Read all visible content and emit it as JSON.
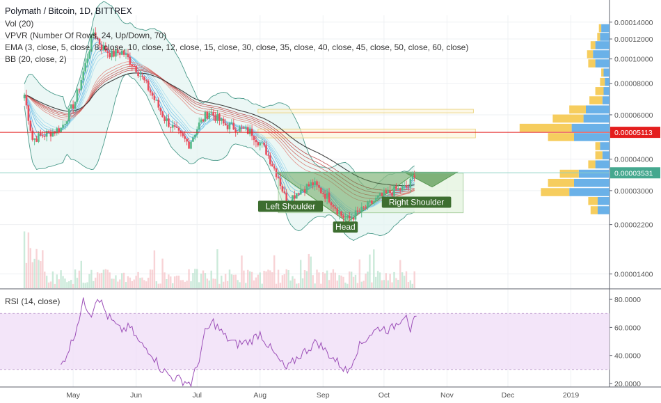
{
  "header": {
    "title": "Polymath / Bitcoin, 1D, BITTREX",
    "indicators": [
      "Vol (20)",
      "VPVR (Number Of Rows, 24, Up/Down, 70)",
      "EMA (3, close, 5, close, 8, close, 10, close, 12, close, 15, close, 30, close, 35, close, 40, close, 45, close, 50, close, 60, close)",
      "BB (20, close, 2)"
    ],
    "rsi_title": "RSI (14, close)"
  },
  "colors": {
    "up": "#53b987",
    "down": "#eb4d5c",
    "bb_fill": "#e3f4f1",
    "rsi_band": "#f0def8",
    "rsi_line": "#9c4fb8",
    "hline": "#e41e1e",
    "price_line": "#8bd1c4",
    "vp_up": "#5aa9e6",
    "vp_down": "#f5c84c",
    "pattern": "#5b9a53",
    "label_bg": "#3d6e30"
  },
  "chart_data": [
    {
      "type": "candlestick",
      "title": "Polymath / Bitcoin, 1D, BITTREX",
      "y_ticks": [
        "0.00014000",
        "0.00012000",
        "0.00010000",
        "0.00008000",
        "0.00006000",
        "0.00004000",
        "0.00003000",
        "0.00002200",
        "0.00001400"
      ],
      "y_ticks_values": [
        0.00014,
        0.00012,
        0.0001,
        8e-05,
        6e-05,
        4e-05,
        3e-05,
        2.2e-05,
        1.4e-05
      ],
      "y_scale": "log",
      "x_ticks": [
        "May",
        "Jun",
        "Jul",
        "Aug",
        "Sep",
        "Oct",
        "Nov",
        "Dec",
        "2019"
      ],
      "x_ticks_dates": [
        "2018-05-01",
        "2018-06-01",
        "2018-07-01",
        "2018-08-01",
        "2018-09-01",
        "2018-10-01",
        "2018-11-01",
        "2018-12-01",
        "2019-01-01"
      ],
      "x_range": [
        "2018-03-26",
        "2019-01-20"
      ],
      "y_range": [
        1.23e-05,
        0.000149
      ],
      "price_keypoints": [
        {
          "date": "2018-04-07",
          "close": 7.2e-05
        },
        {
          "date": "2018-04-11",
          "close": 4.8e-05
        },
        {
          "date": "2018-04-25",
          "close": 5.3e-05
        },
        {
          "date": "2018-05-02",
          "close": 6.8e-05
        },
        {
          "date": "2018-05-07",
          "close": 9.5e-05
        },
        {
          "date": "2018-05-11",
          "close": 0.000128
        },
        {
          "date": "2018-05-15",
          "close": 0.000112
        },
        {
          "date": "2018-05-20",
          "close": 0.000104
        },
        {
          "date": "2018-05-25",
          "close": 0.000107
        },
        {
          "date": "2018-06-01",
          "close": 9.2e-05
        },
        {
          "date": "2018-06-08",
          "close": 7.4e-05
        },
        {
          "date": "2018-06-15",
          "close": 5.8e-05
        },
        {
          "date": "2018-06-22",
          "close": 5e-05
        },
        {
          "date": "2018-06-27",
          "close": 4.6e-05
        },
        {
          "date": "2018-07-02",
          "close": 5.5e-05
        },
        {
          "date": "2018-07-07",
          "close": 6.2e-05
        },
        {
          "date": "2018-07-14",
          "close": 5.5e-05
        },
        {
          "date": "2018-07-21",
          "close": 5.3e-05
        },
        {
          "date": "2018-07-28",
          "close": 5.1e-05
        },
        {
          "date": "2018-08-04",
          "close": 4.3e-05
        },
        {
          "date": "2018-08-10",
          "close": 3.4e-05
        },
        {
          "date": "2018-08-14",
          "close": 2.7e-05
        },
        {
          "date": "2018-08-20",
          "close": 3e-05
        },
        {
          "date": "2018-08-27",
          "close": 3.2e-05
        },
        {
          "date": "2018-09-04",
          "close": 2.8e-05
        },
        {
          "date": "2018-09-10",
          "close": 2.4e-05
        },
        {
          "date": "2018-09-13",
          "close": 2.3e-05
        },
        {
          "date": "2018-09-20",
          "close": 2.5e-05
        },
        {
          "date": "2018-09-28",
          "close": 2.8e-05
        },
        {
          "date": "2018-10-06",
          "close": 3e-05
        },
        {
          "date": "2018-10-13",
          "close": 3.1e-05
        },
        {
          "date": "2018-10-16",
          "close": 3.53e-05
        }
      ],
      "horizontal_line": 5.113e-05,
      "last_price_line": 3.531e-05,
      "price_tags": [
        "0.00005113",
        "0.00003531"
      ],
      "annotations": [
        {
          "text": "Left Shoulder",
          "date": "2018-08-16",
          "price": 2.6e-05
        },
        {
          "text": "Head",
          "date": "2018-09-12",
          "price": 2.15e-05
        },
        {
          "text": "Right Shoulder",
          "date": "2018-10-17",
          "price": 2.7e-05
        }
      ],
      "boxes": [
        {
          "date_start": "2018-07-31",
          "date_end": "2018-11-14",
          "price_low": 6.11e-05,
          "price_high": 6.31e-05
        },
        {
          "date_start": "2018-07-31",
          "date_end": "2018-11-15",
          "price_low": 4.86e-05,
          "price_high": 5.27e-05
        },
        {
          "date_start": "2018-08-10",
          "date_end": "2018-11-09",
          "price_low": 2.45e-05,
          "price_high": 3.52e-05
        }
      ],
      "volume_profile": [
        {
          "price": 0.000132,
          "up": 0.35,
          "down": 0.1
        },
        {
          "price": 0.000122,
          "up": 0.4,
          "down": 0.12
        },
        {
          "price": 0.000113,
          "up": 0.6,
          "down": 0.2
        },
        {
          "price": 0.000104,
          "up": 0.7,
          "down": 0.25
        },
        {
          "price": 9.57e-05,
          "up": 0.6,
          "down": 0.3
        },
        {
          "price": 8.8e-05,
          "up": 0.25,
          "down": 0.1
        },
        {
          "price": 8.08e-05,
          "up": 0.2,
          "down": 0.2
        },
        {
          "price": 7.43e-05,
          "up": 0.25,
          "down": 0.35
        },
        {
          "price": 6.83e-05,
          "up": 0.3,
          "down": 0.55
        },
        {
          "price": 6.28e-05,
          "up": 1.0,
          "down": 0.7
        },
        {
          "price": 5.78e-05,
          "up": 1.1,
          "down": 1.3
        },
        {
          "price": 5.31e-05,
          "up": 1.6,
          "down": 2.2
        },
        {
          "price": 4.88e-05,
          "up": 1.5,
          "down": 1.1
        },
        {
          "price": 4.49e-05,
          "up": 0.4,
          "down": 0.2
        },
        {
          "price": 4.13e-05,
          "up": 0.3,
          "down": 0.3
        },
        {
          "price": 3.8e-05,
          "up": 0.6,
          "down": 0.3
        },
        {
          "price": 3.49e-05,
          "up": 1.3,
          "down": 0.8
        },
        {
          "price": 3.21e-05,
          "up": 1.5,
          "down": 1.1
        },
        {
          "price": 2.95e-05,
          "up": 1.7,
          "down": 1.2
        },
        {
          "price": 2.72e-05,
          "up": 0.5,
          "down": 0.4
        },
        {
          "price": 2.5e-05,
          "up": 0.5,
          "down": 0.3
        }
      ]
    },
    {
      "type": "line",
      "title": "RSI (14, close)",
      "y_ticks": [
        "80.0000",
        "60.0000",
        "40.0000",
        "20.0000"
      ],
      "y_ticks_values": [
        80,
        60,
        40,
        20
      ],
      "y_range": [
        17.5,
        87
      ],
      "band": [
        30,
        70
      ],
      "x": [
        "2018-04-25",
        "2018-05-01",
        "2018-05-06",
        "2018-05-10",
        "2018-05-13",
        "2018-05-18",
        "2018-05-24",
        "2018-05-29",
        "2018-06-03",
        "2018-06-08",
        "2018-06-13",
        "2018-06-18",
        "2018-06-24",
        "2018-06-28",
        "2018-07-01",
        "2018-07-05",
        "2018-07-09",
        "2018-07-15",
        "2018-07-20",
        "2018-07-27",
        "2018-08-01",
        "2018-08-06",
        "2018-08-10",
        "2018-08-14",
        "2018-08-19",
        "2018-08-24",
        "2018-08-29",
        "2018-09-03",
        "2018-09-09",
        "2018-09-13",
        "2018-09-18",
        "2018-09-24",
        "2018-09-29",
        "2018-10-04",
        "2018-10-08",
        "2018-10-12",
        "2018-10-14",
        "2018-10-17"
      ],
      "values": [
        32,
        52,
        78,
        70,
        83,
        68,
        58,
        60,
        48,
        43,
        31,
        25,
        22,
        20,
        32,
        56,
        64,
        53,
        48,
        50,
        56,
        45,
        37,
        30,
        38,
        44,
        50,
        42,
        34,
        28,
        45,
        55,
        60,
        58,
        64,
        71,
        58,
        68
      ]
    }
  ]
}
